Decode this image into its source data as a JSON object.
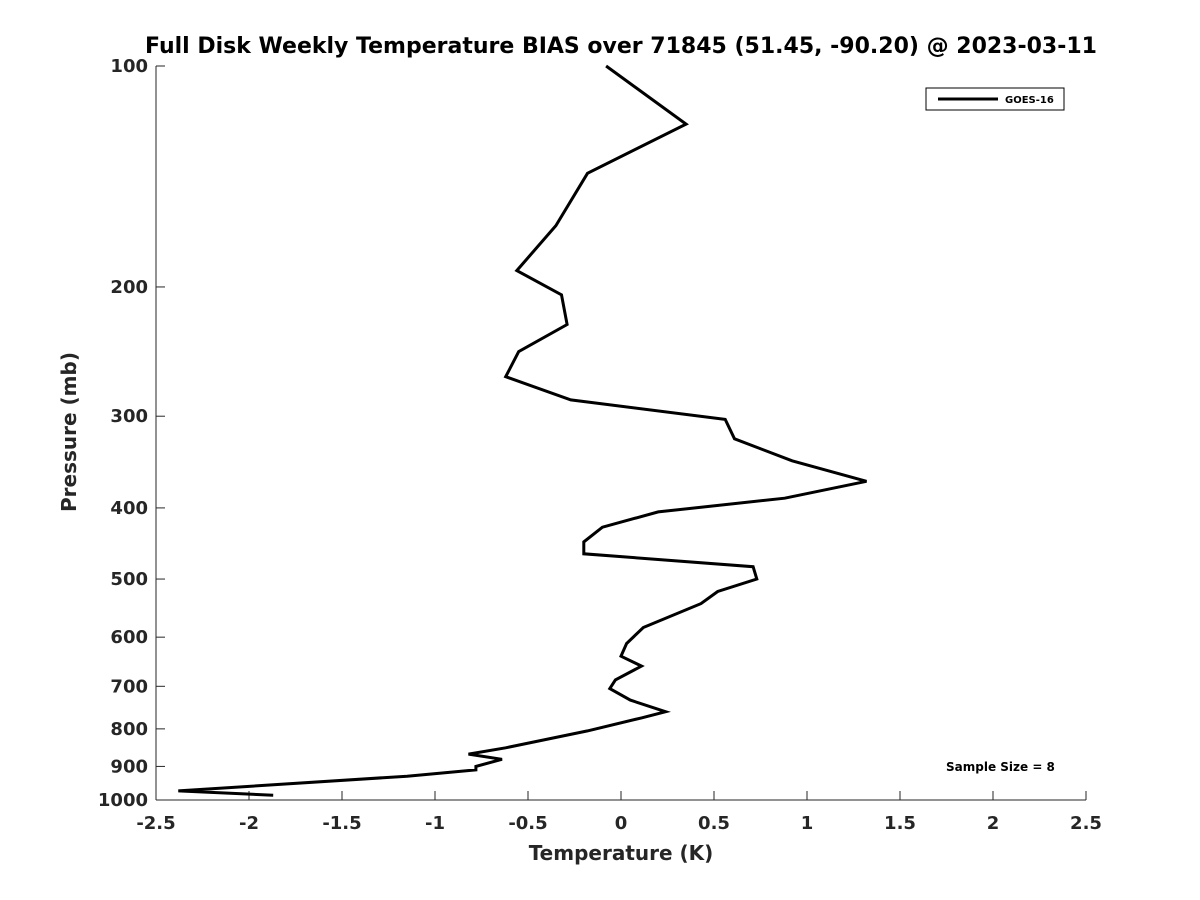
{
  "chart_data": {
    "type": "line",
    "title": "Full Disk Weekly Temperature BIAS over 71845 (51.45, -90.20) @ 2023-03-11",
    "xlabel": "Temperature (K)",
    "ylabel": "Pressure (mb)",
    "xlim": [
      -2.5,
      2.5
    ],
    "ylim": [
      100,
      1000
    ],
    "y_scale": "log",
    "x_ticks": [
      -2.5,
      -2,
      -1.5,
      -1,
      -0.5,
      0,
      0.5,
      1,
      1.5,
      2,
      2.5
    ],
    "x_tick_labels": [
      "-2.5",
      "-2",
      "-1.5",
      "-1",
      "-0.5",
      "0",
      "0.5",
      "1",
      "1.5",
      "2",
      "2.5"
    ],
    "y_ticks": [
      100,
      200,
      300,
      400,
      500,
      600,
      700,
      800,
      900,
      1000
    ],
    "y_tick_labels": [
      "100",
      "200",
      "300",
      "400",
      "500",
      "600",
      "700",
      "800",
      "900",
      "1000"
    ],
    "grid": false,
    "legend_position": "top-right",
    "series_color": "#000000",
    "series": [
      {
        "name": "GOES-16",
        "points": [
          [
            -0.08,
            100
          ],
          [
            0.35,
            120
          ],
          [
            -0.18,
            140
          ],
          [
            -0.35,
            165
          ],
          [
            -0.56,
            190
          ],
          [
            -0.32,
            205
          ],
          [
            -0.29,
            225
          ],
          [
            -0.55,
            245
          ],
          [
            -0.62,
            265
          ],
          [
            -0.27,
            285
          ],
          [
            0.56,
            303
          ],
          [
            0.61,
            322
          ],
          [
            0.92,
            345
          ],
          [
            1.32,
            368
          ],
          [
            0.88,
            388
          ],
          [
            0.2,
            405
          ],
          [
            -0.1,
            425
          ],
          [
            -0.2,
            445
          ],
          [
            -0.2,
            462
          ],
          [
            0.71,
            481
          ],
          [
            0.73,
            500
          ],
          [
            0.52,
            520
          ],
          [
            0.43,
            540
          ],
          [
            0.12,
            582
          ],
          [
            0.03,
            612
          ],
          [
            0.0,
            637
          ],
          [
            0.11,
            657
          ],
          [
            -0.03,
            686
          ],
          [
            -0.06,
            705
          ],
          [
            0.05,
            731
          ],
          [
            0.24,
            758
          ],
          [
            0.11,
            773
          ],
          [
            -0.18,
            805
          ],
          [
            -0.62,
            849
          ],
          [
            -0.82,
            866
          ],
          [
            -0.64,
            880
          ],
          [
            -0.78,
            900
          ],
          [
            -0.78,
            910
          ],
          [
            -1.15,
            928
          ],
          [
            -2.38,
            972
          ],
          [
            -1.87,
            985
          ]
        ]
      }
    ],
    "annotation": "Sample Size = 8"
  }
}
